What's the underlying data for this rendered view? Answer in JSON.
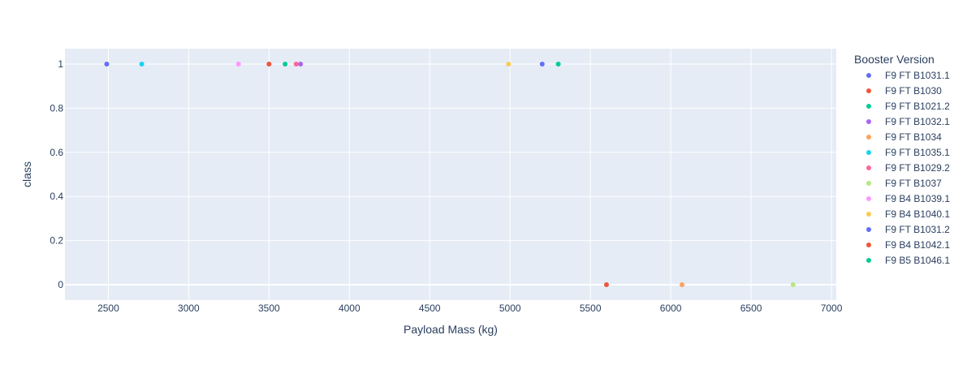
{
  "chart_data": {
    "type": "scatter",
    "xlabel": "Payload Mass (kg)",
    "ylabel": "class",
    "xlim": [
      2230,
      7030
    ],
    "ylim": [
      -0.07,
      1.07
    ],
    "xticks": [
      2500,
      3000,
      3500,
      4000,
      4500,
      5000,
      5500,
      6000,
      6500,
      7000
    ],
    "yticks": [
      0,
      0.2,
      0.4,
      0.6,
      0.8,
      1
    ],
    "ytick_labels": [
      "0",
      "0.2",
      "0.4",
      "0.6",
      "0.8",
      "1"
    ],
    "grid": true,
    "legend_title": "Booster Version",
    "legend_position": "right",
    "series": [
      {
        "name": "F9 FT B1031.1",
        "color": "#636efa",
        "points": [
          {
            "x": 2490,
            "y": 1
          }
        ]
      },
      {
        "name": "F9 FT B1030",
        "color": "#ef553b",
        "points": [
          {
            "x": 3500,
            "y": 1
          }
        ]
      },
      {
        "name": "F9 FT  B1021.2",
        "color": "#00cc96",
        "points": [
          {
            "x": 3600,
            "y": 1
          }
        ]
      },
      {
        "name": "F9 FT B1032.1",
        "color": "#ab63fa",
        "points": [
          {
            "x": 3696,
            "y": 1
          }
        ]
      },
      {
        "name": "F9 FT B1034",
        "color": "#ffa15a",
        "points": [
          {
            "x": 6070,
            "y": 0
          }
        ]
      },
      {
        "name": "F9 FT B1035.1",
        "color": "#19d3f3",
        "points": [
          {
            "x": 2708,
            "y": 1
          }
        ]
      },
      {
        "name": "F9 FT  B1029.2",
        "color": "#ff6692",
        "points": [
          {
            "x": 3669,
            "y": 1
          }
        ]
      },
      {
        "name": "F9 FT B1037",
        "color": "#b6e880",
        "points": [
          {
            "x": 6761,
            "y": 0
          }
        ]
      },
      {
        "name": "F9 B4 B1039.1",
        "color": "#ff97ff",
        "points": [
          {
            "x": 3310,
            "y": 1
          }
        ]
      },
      {
        "name": "F9 B4 B1040.1",
        "color": "#fecb52",
        "points": [
          {
            "x": 4990,
            "y": 1
          }
        ]
      },
      {
        "name": "F9 FT  B1031.2",
        "color": "#636efa",
        "points": [
          {
            "x": 5200,
            "y": 1
          }
        ]
      },
      {
        "name": "F9 B4 B1042.1",
        "color": "#ef553b",
        "points": [
          {
            "x": 5600,
            "y": 0
          }
        ]
      },
      {
        "name": "F9 B5  B1046.1",
        "color": "#00cc96",
        "points": [
          {
            "x": 5300,
            "y": 1
          }
        ]
      }
    ]
  },
  "style": {
    "plot_bg": "#e5ecf6",
    "grid_color": "#ffffff",
    "text_color": "#2a3f5f"
  }
}
